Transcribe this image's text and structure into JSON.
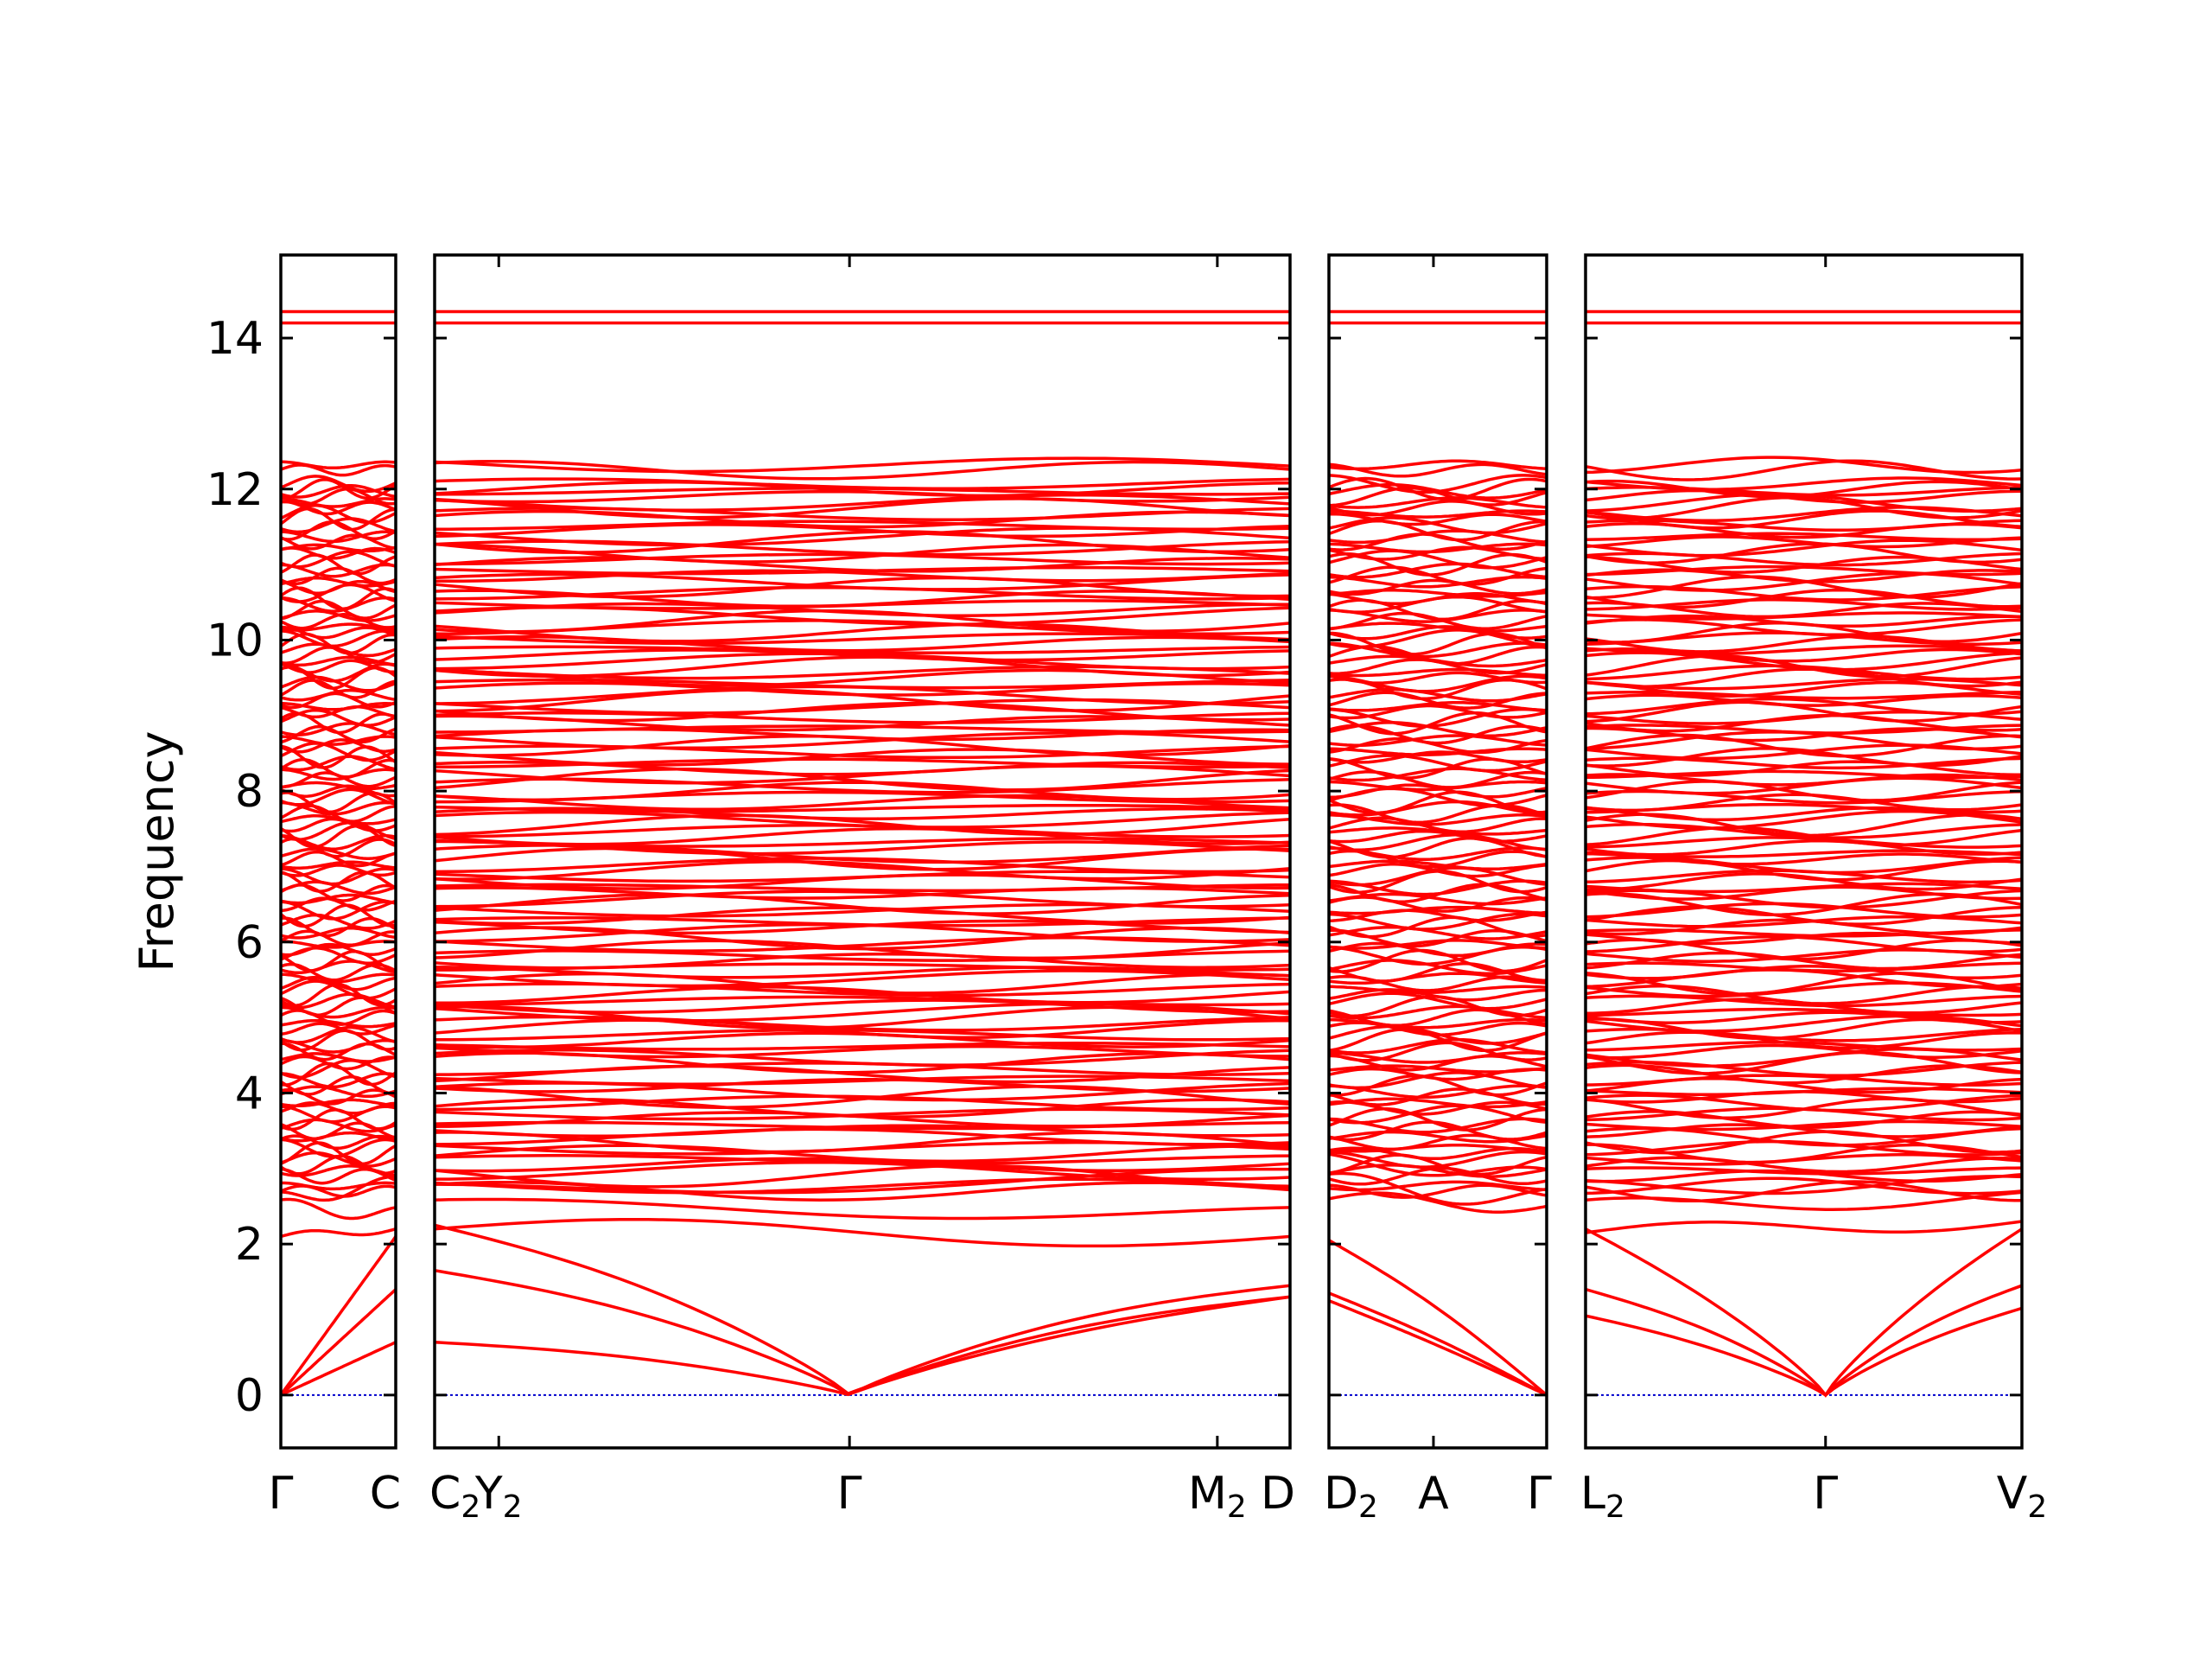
{
  "chart_data": {
    "type": "line",
    "title": "",
    "ylabel": "Frequency",
    "xlabel": "",
    "ylim": [
      -0.7,
      15.1
    ],
    "yticks": [
      0,
      2,
      4,
      6,
      8,
      10,
      12,
      14
    ],
    "grid": false,
    "legend": "none",
    "colors": {
      "bands": "#ff0000",
      "zero_line": "#0000cc",
      "axes": "#000000"
    },
    "panels": [
      {
        "xrange": [
          0,
          1
        ],
        "ticks": [
          {
            "x": 0,
            "base": "Γ",
            "sub": ""
          },
          {
            "x": 1,
            "base": "C",
            "sub": ""
          }
        ],
        "acoustic": [
          {
            "start": 0,
            "end": 2.1,
            "curv": 0.0
          },
          {
            "start": 0,
            "end": 1.4,
            "curv": 0.0
          },
          {
            "start": 0,
            "end": 0.7,
            "curv": 0.0
          }
        ],
        "low_bands": [
          {
            "start": 2.1,
            "end": 2.2,
            "amp": 0.05
          },
          {
            "start": 2.5,
            "end": 2.4,
            "amp": 0.1
          },
          {
            "start": 2.6,
            "end": 2.8,
            "amp": 0.1
          }
        ],
        "top_bands": [
          14.35,
          14.2
        ]
      },
      {
        "xrange": [
          0,
          1
        ],
        "ticks": [
          {
            "x": 0,
            "base": "C",
            "sub": "2"
          },
          {
            "x": 0.075,
            "base": "Y",
            "sub": "2"
          },
          {
            "x": 0.485,
            "base": "Γ",
            "sub": ""
          },
          {
            "x": 0.915,
            "base": "M",
            "sub": "2"
          },
          {
            "x": 1,
            "base": "D",
            "sub": ""
          }
        ],
        "acoustic": [
          {
            "start": 2.25,
            "end": 1.45,
            "curv": 0.6
          },
          {
            "start": 1.65,
            "end": 1.3,
            "curv": 0.5
          },
          {
            "start": 0.7,
            "end": 1.3,
            "curv": 0.3
          }
        ],
        "low_bands": [
          {
            "start": 2.2,
            "end": 2.1,
            "amp": 0.15
          },
          {
            "start": 2.5,
            "end": 2.4,
            "amp": 0.1
          },
          {
            "start": 2.7,
            "end": 2.9,
            "amp": 0.1
          }
        ],
        "top_bands": [
          14.35,
          14.2
        ]
      },
      {
        "xrange": [
          0,
          1
        ],
        "ticks": [
          {
            "x": 0,
            "base": "D",
            "sub": "2"
          },
          {
            "x": 0.48,
            "base": "A",
            "sub": ""
          },
          {
            "x": 1,
            "base": "Γ",
            "sub": ""
          }
        ],
        "acoustic": [
          {
            "start": 2.05,
            "end": 0,
            "curv": 0.4
          },
          {
            "start": 1.35,
            "end": 0,
            "curv": 0.2
          },
          {
            "start": 1.25,
            "end": 0,
            "curv": 0.1
          }
        ],
        "low_bands": [
          {
            "start": 2.6,
            "end": 2.5,
            "amp": 0.1
          },
          {
            "start": 2.8,
            "end": 2.6,
            "amp": 0.15
          },
          {
            "start": 3.1,
            "end": 2.9,
            "amp": 0.1
          }
        ],
        "top_bands": [
          14.35,
          14.2
        ]
      },
      {
        "xrange": [
          0,
          1
        ],
        "ticks": [
          {
            "x": 0,
            "base": "L",
            "sub": "2"
          },
          {
            "x": 0.55,
            "base": "Γ",
            "sub": ""
          },
          {
            "x": 1,
            "base": "V",
            "sub": "2"
          }
        ],
        "acoustic": [
          {
            "start": 2.2,
            "end": 2.2,
            "curv": 0.2
          },
          {
            "start": 1.4,
            "end": 1.45,
            "curv": 0.3
          },
          {
            "start": 1.05,
            "end": 1.15,
            "curv": 0.2
          }
        ],
        "low_bands": [
          {
            "start": 2.15,
            "end": 2.3,
            "amp": 0.1
          },
          {
            "start": 2.5,
            "end": 2.6,
            "amp": 0.1
          },
          {
            "start": 2.75,
            "end": 2.8,
            "amp": 0.1
          }
        ],
        "top_bands": [
          14.35,
          14.2
        ]
      }
    ],
    "band_levels": [
      2.7,
      2.9,
      3.05,
      3.2,
      3.35,
      3.5,
      3.65,
      3.8,
      3.95,
      4.1,
      4.25,
      4.4,
      4.55,
      4.7,
      4.85,
      5.0,
      5.15,
      5.3,
      5.45,
      5.6,
      5.75,
      5.9,
      6.05,
      6.2,
      6.35,
      6.5,
      6.65,
      6.8,
      6.95,
      7.1,
      7.25,
      7.4,
      7.55,
      7.7,
      7.85,
      8.0,
      8.15,
      8.3,
      8.45,
      8.6,
      8.75,
      8.9,
      9.05,
      9.2,
      9.35,
      9.5,
      9.65,
      9.8,
      9.95,
      10.1,
      10.25,
      10.4,
      10.55,
      10.7,
      10.85,
      11.0,
      11.15,
      11.3,
      11.45,
      11.6,
      11.75,
      11.9,
      12.0,
      12.25
    ]
  }
}
